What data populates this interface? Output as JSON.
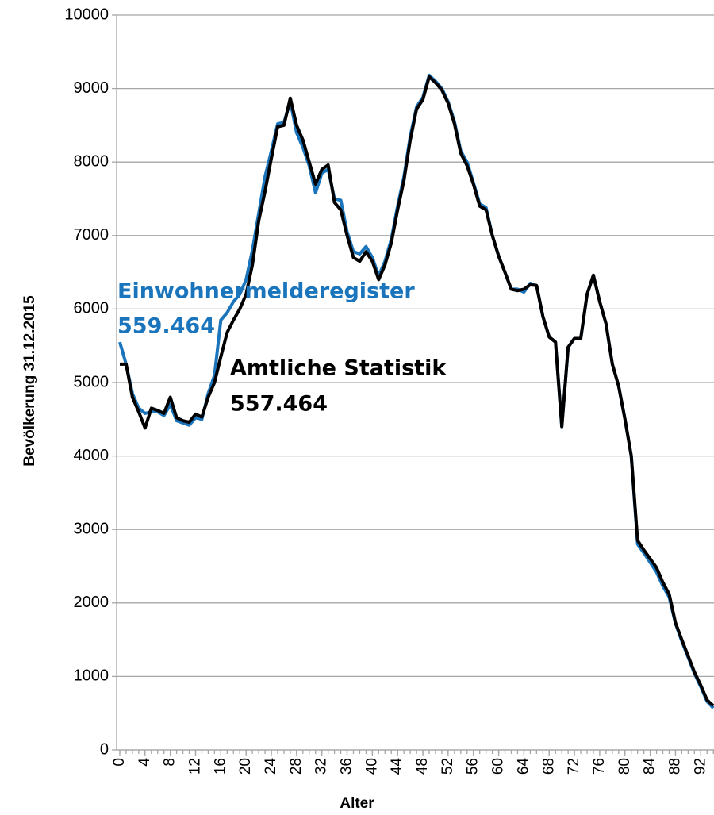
{
  "chart_data": {
    "type": "line",
    "y_label": "Bevölkerung 31.12.2015",
    "x_label": "Alter",
    "annotations": [
      {
        "text": "Einwohnermelderegister",
        "color": "#1a75bc"
      },
      {
        "text": "559.464",
        "color": "#1a75bc"
      },
      {
        "text": "Amtliche Statistik",
        "color": "#000000"
      },
      {
        "text": "557.464",
        "color": "#000000"
      }
    ],
    "x": [
      0,
      1,
      2,
      3,
      4,
      5,
      6,
      7,
      8,
      9,
      10,
      11,
      12,
      13,
      14,
      15,
      16,
      17,
      18,
      19,
      20,
      21,
      22,
      23,
      24,
      25,
      26,
      27,
      28,
      29,
      30,
      31,
      32,
      33,
      34,
      35,
      36,
      37,
      38,
      39,
      40,
      41,
      42,
      43,
      44,
      45,
      46,
      47,
      48,
      49,
      50,
      51,
      52,
      53,
      54,
      55,
      56,
      57,
      58,
      59,
      60,
      61,
      62,
      63,
      64,
      65,
      66,
      67,
      68,
      69,
      70,
      71,
      72,
      73,
      74,
      75,
      76,
      77,
      78,
      79,
      80,
      81,
      82,
      83,
      84,
      85,
      86,
      87,
      88,
      89,
      90,
      91,
      92,
      93,
      94
    ],
    "series": [
      {
        "name": "Einwohnermelderegister",
        "color": "#1a75bc",
        "values": [
          5550,
          5250,
          4850,
          4650,
          4580,
          4600,
          4600,
          4550,
          4700,
          4480,
          4450,
          4420,
          4520,
          4500,
          4850,
          5100,
          5850,
          5950,
          6100,
          6200,
          6400,
          6800,
          7300,
          7800,
          8150,
          8520,
          8540,
          8820,
          8400,
          8200,
          7950,
          7580,
          7850,
          7900,
          7500,
          7480,
          7050,
          6780,
          6750,
          6850,
          6700,
          6450,
          6650,
          6950,
          7400,
          7800,
          8350,
          8750,
          8880,
          9180,
          9100,
          9000,
          8820,
          8550,
          8150,
          8000,
          7720,
          7430,
          7380,
          7000,
          6720,
          6500,
          6270,
          6270,
          6230,
          6350,
          6320,
          5900,
          5620,
          5550,
          4400,
          5480,
          5600,
          5600,
          6200,
          6460,
          6100,
          5800,
          5250,
          4950,
          4500,
          4000,
          2800,
          2680,
          2550,
          2420,
          2230,
          2080,
          1720,
          1480,
          1260,
          1040,
          860,
          660,
          570
        ]
      },
      {
        "name": "Amtliche Statistik",
        "color": "#000000",
        "values": [
          5250,
          5250,
          4800,
          4600,
          4380,
          4650,
          4620,
          4580,
          4800,
          4520,
          4480,
          4460,
          4570,
          4530,
          4800,
          5000,
          5350,
          5680,
          5850,
          6000,
          6200,
          6600,
          7200,
          7600,
          8050,
          8480,
          8500,
          8870,
          8500,
          8300,
          8000,
          7700,
          7900,
          7960,
          7450,
          7350,
          7000,
          6700,
          6650,
          6780,
          6650,
          6400,
          6600,
          6900,
          7350,
          7750,
          8300,
          8720,
          8850,
          9160,
          9080,
          8980,
          8800,
          8520,
          8120,
          7950,
          7700,
          7400,
          7350,
          7000,
          6720,
          6500,
          6270,
          6250,
          6270,
          6330,
          6320,
          5900,
          5620,
          5550,
          4400,
          5480,
          5600,
          5600,
          6200,
          6460,
          6100,
          5800,
          5250,
          4950,
          4500,
          4000,
          2850,
          2720,
          2600,
          2480,
          2280,
          2120,
          1730,
          1500,
          1280,
          1060,
          880,
          680,
          600
        ]
      }
    ],
    "xlim": [
      -0.5,
      94.1
    ],
    "xticks": [
      0,
      4,
      8,
      12,
      16,
      20,
      24,
      28,
      32,
      36,
      40,
      44,
      48,
      52,
      56,
      60,
      64,
      68,
      72,
      76,
      80,
      84,
      88,
      92
    ],
    "ylim": [
      0,
      10000
    ],
    "yticks": [
      0,
      1000,
      2000,
      3000,
      4000,
      5000,
      6000,
      7000,
      8000,
      9000,
      10000
    ],
    "grid": true
  }
}
